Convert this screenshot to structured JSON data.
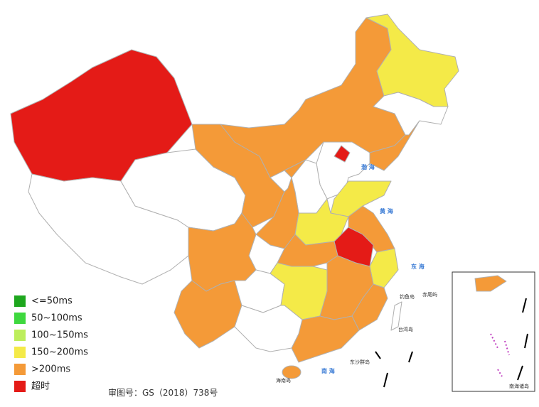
{
  "legend": [
    {
      "label": "<=50ms",
      "color": "#1ea71e"
    },
    {
      "label": "50~100ms",
      "color": "#3ed83e"
    },
    {
      "label": "100~150ms",
      "color": "#bdee5c"
    },
    {
      "label": "150~200ms",
      "color": "#f4ea48"
    },
    {
      "label": ">200ms",
      "color": "#f49a38"
    },
    {
      "label": "超时",
      "color": "#e41b17"
    }
  ],
  "footer": "审图号：GS（2018）738号",
  "sea_labels": [
    "渤 海",
    "黄 海",
    "东 海",
    "南 海",
    "台湾岛",
    "海南岛",
    "东沙群岛",
    "钓鱼岛",
    "赤尾屿",
    "南海诸岛"
  ]
}
